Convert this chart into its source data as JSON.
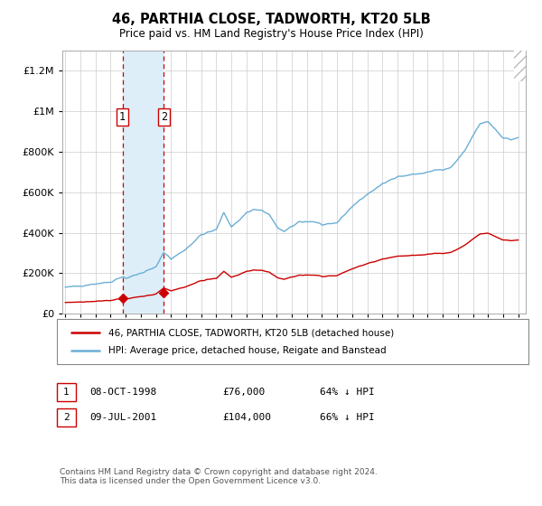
{
  "title": "46, PARTHIA CLOSE, TADWORTH, KT20 5LB",
  "subtitle": "Price paid vs. HM Land Registry's House Price Index (HPI)",
  "sale1_date": "08-OCT-1998",
  "sale1_price": 76000,
  "sale1_label": "1",
  "sale1_year": 1998.78,
  "sale2_date": "09-JUL-2001",
  "sale2_price": 104000,
  "sale2_label": "2",
  "sale2_year": 2001.52,
  "legend_line1": "46, PARTHIA CLOSE, TADWORTH, KT20 5LB (detached house)",
  "legend_line2": "HPI: Average price, detached house, Reigate and Banstead",
  "table_row1": [
    "1",
    "08-OCT-1998",
    "£76,000",
    "64% ↓ HPI"
  ],
  "table_row2": [
    "2",
    "09-JUL-2001",
    "£104,000",
    "66% ↓ HPI"
  ],
  "footer": "Contains HM Land Registry data © Crown copyright and database right 2024.\nThis data is licensed under the Open Government Licence v3.0.",
  "xmin": 1995,
  "xmax": 2025.5,
  "ymin": 0,
  "ymax": 1300000,
  "yticks": [
    0,
    200000,
    400000,
    600000,
    800000,
    1000000,
    1200000
  ],
  "ytick_labels": [
    "£0",
    "£200K",
    "£400K",
    "£600K",
    "£800K",
    "£1M",
    "£1.2M"
  ],
  "hpi_color": "#6baed6",
  "price_color": "#cc0000",
  "shade_color": "#ddeef8",
  "background_color": "#ffffff",
  "grid_color": "#cccccc",
  "years_hpi": [
    1995.0,
    1995.08,
    1995.17,
    1995.25,
    1995.33,
    1995.42,
    1995.5,
    1995.58,
    1995.67,
    1995.75,
    1995.83,
    1995.92,
    1996.0,
    1996.08,
    1996.17,
    1996.25,
    1996.33,
    1996.42,
    1996.5,
    1996.58,
    1996.67,
    1996.75,
    1996.83,
    1996.92,
    1997.0,
    1997.08,
    1997.17,
    1997.25,
    1997.33,
    1997.42,
    1997.5,
    1997.58,
    1997.67,
    1997.75,
    1997.83,
    1997.92,
    1998.0,
    1998.08,
    1998.17,
    1998.25,
    1998.33,
    1998.42,
    1998.5,
    1998.58,
    1998.67,
    1998.75,
    1998.83,
    1998.92,
    1999.0,
    1999.08,
    1999.17,
    1999.25,
    1999.33,
    1999.42,
    1999.5,
    1999.58,
    1999.67,
    1999.75,
    1999.83,
    1999.92,
    2000.0,
    2000.08,
    2000.17,
    2000.25,
    2000.33,
    2000.42,
    2000.5,
    2000.58,
    2000.67,
    2000.75,
    2000.83,
    2000.92,
    2001.0,
    2001.08,
    2001.17,
    2001.25,
    2001.33,
    2001.42,
    2001.5,
    2001.58,
    2001.67,
    2001.75,
    2001.83,
    2001.92,
    2002.0,
    2002.08,
    2002.17,
    2002.25,
    2002.33,
    2002.42,
    2002.5,
    2002.58,
    2002.67,
    2002.75,
    2002.83,
    2002.92,
    2003.0,
    2003.08,
    2003.17,
    2003.25,
    2003.33,
    2003.42,
    2003.5,
    2003.58,
    2003.67,
    2003.75,
    2003.83,
    2003.92,
    2004.0,
    2004.08,
    2004.17,
    2004.25,
    2004.33,
    2004.42,
    2004.5,
    2004.58,
    2004.67,
    2004.75,
    2004.83,
    2004.92,
    2005.0,
    2005.08,
    2005.17,
    2005.25,
    2005.33,
    2005.42,
    2005.5,
    2005.58,
    2005.67,
    2005.75,
    2005.83,
    2005.92,
    2006.0,
    2006.08,
    2006.17,
    2006.25,
    2006.33,
    2006.42,
    2006.5,
    2006.58,
    2006.67,
    2006.75,
    2006.83,
    2006.92,
    2007.0,
    2007.08,
    2007.17,
    2007.25,
    2007.33,
    2007.42,
    2007.5,
    2007.58,
    2007.67,
    2007.75,
    2007.83,
    2007.92,
    2008.0,
    2008.08,
    2008.17,
    2008.25,
    2008.33,
    2008.42,
    2008.5,
    2008.58,
    2008.67,
    2008.75,
    2008.83,
    2008.92,
    2009.0,
    2009.08,
    2009.17,
    2009.25,
    2009.33,
    2009.42,
    2009.5,
    2009.58,
    2009.67,
    2009.75,
    2009.83,
    2009.92,
    2010.0,
    2010.08,
    2010.17,
    2010.25,
    2010.33,
    2010.42,
    2010.5,
    2010.58,
    2010.67,
    2010.75,
    2010.83,
    2010.92,
    2011.0,
    2011.08,
    2011.17,
    2011.25,
    2011.33,
    2011.42,
    2011.5,
    2011.58,
    2011.67,
    2011.75,
    2011.83,
    2011.92,
    2012.0,
    2012.08,
    2012.17,
    2012.25,
    2012.33,
    2012.42,
    2012.5,
    2012.58,
    2012.67,
    2012.75,
    2012.83,
    2012.92,
    2013.0,
    2013.08,
    2013.17,
    2013.25,
    2013.33,
    2013.42,
    2013.5,
    2013.58,
    2013.67,
    2013.75,
    2013.83,
    2013.92,
    2014.0,
    2014.08,
    2014.17,
    2014.25,
    2014.33,
    2014.42,
    2014.5,
    2014.58,
    2014.67,
    2014.75,
    2014.83,
    2014.92,
    2015.0,
    2015.08,
    2015.17,
    2015.25,
    2015.33,
    2015.42,
    2015.5,
    2015.58,
    2015.67,
    2015.75,
    2015.83,
    2015.92,
    2016.0,
    2016.08,
    2016.17,
    2016.25,
    2016.33,
    2016.42,
    2016.5,
    2016.58,
    2016.67,
    2016.75,
    2016.83,
    2016.92,
    2017.0,
    2017.08,
    2017.17,
    2017.25,
    2017.33,
    2017.42,
    2017.5,
    2017.58,
    2017.67,
    2017.75,
    2017.83,
    2017.92,
    2018.0,
    2018.08,
    2018.17,
    2018.25,
    2018.33,
    2018.42,
    2018.5,
    2018.58,
    2018.67,
    2018.75,
    2018.83,
    2018.92,
    2019.0,
    2019.08,
    2019.17,
    2019.25,
    2019.33,
    2019.42,
    2019.5,
    2019.58,
    2019.67,
    2019.75,
    2019.83,
    2019.92,
    2020.0,
    2020.08,
    2020.17,
    2020.25,
    2020.33,
    2020.42,
    2020.5,
    2020.58,
    2020.67,
    2020.75,
    2020.83,
    2020.92,
    2021.0,
    2021.08,
    2021.17,
    2021.25,
    2021.33,
    2021.42,
    2021.5,
    2021.58,
    2021.67,
    2021.75,
    2021.83,
    2021.92,
    2022.0,
    2022.08,
    2022.17,
    2022.25,
    2022.33,
    2022.42,
    2022.5,
    2022.58,
    2022.67,
    2022.75,
    2022.83,
    2022.92,
    2023.0,
    2023.08,
    2023.17,
    2023.25,
    2023.33,
    2023.42,
    2023.5,
    2023.58,
    2023.67,
    2023.75,
    2023.83,
    2023.92,
    2024.0,
    2024.08,
    2024.17,
    2024.25,
    2024.33,
    2024.42,
    2024.5,
    2024.58,
    2024.67,
    2024.75,
    2024.83,
    2024.92,
    2025.0
  ]
}
